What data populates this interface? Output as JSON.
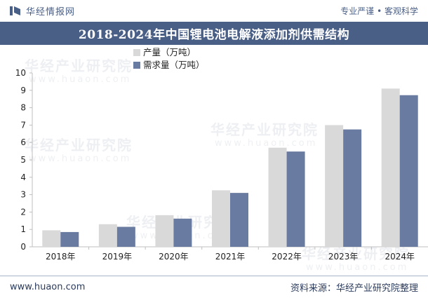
{
  "header": {
    "brand": "华经情报网",
    "slogan": "专业严谨 • 客观科学"
  },
  "title": "2018-2024年中国锂电池电解液添加剂供需结构",
  "footer": {
    "website": "www.huaon.com",
    "source": "资料来源：华经产业研究院整理"
  },
  "watermark": {
    "text": "华经产业研究院",
    "sub": "www.huaon.com"
  },
  "colors": {
    "brand": "#4a5f86",
    "series_production": "#d9d9d9",
    "series_demand": "#6a7ba1"
  },
  "chart_data": {
    "type": "bar",
    "title": "2018-2024年中国锂电池电解液添加剂供需结构",
    "categories": [
      "2018年",
      "2019年",
      "2020年",
      "2021年",
      "2022年",
      "2023年",
      "2024年"
    ],
    "series": [
      {
        "name": "产量（万吨）",
        "values": [
          0.95,
          1.3,
          1.82,
          3.25,
          5.7,
          7.0,
          9.1
        ]
      },
      {
        "name": "需求量（万吨）",
        "values": [
          0.85,
          1.15,
          1.62,
          3.1,
          5.48,
          6.75,
          8.72
        ]
      }
    ],
    "xlabel": "",
    "ylabel": "",
    "ylim": [
      0,
      10
    ],
    "yticks": [
      "0",
      "1",
      "2",
      "3",
      "4",
      "5",
      "6",
      "7",
      "8",
      "9",
      "10"
    ],
    "legend_position": "top-center",
    "grid": false
  }
}
